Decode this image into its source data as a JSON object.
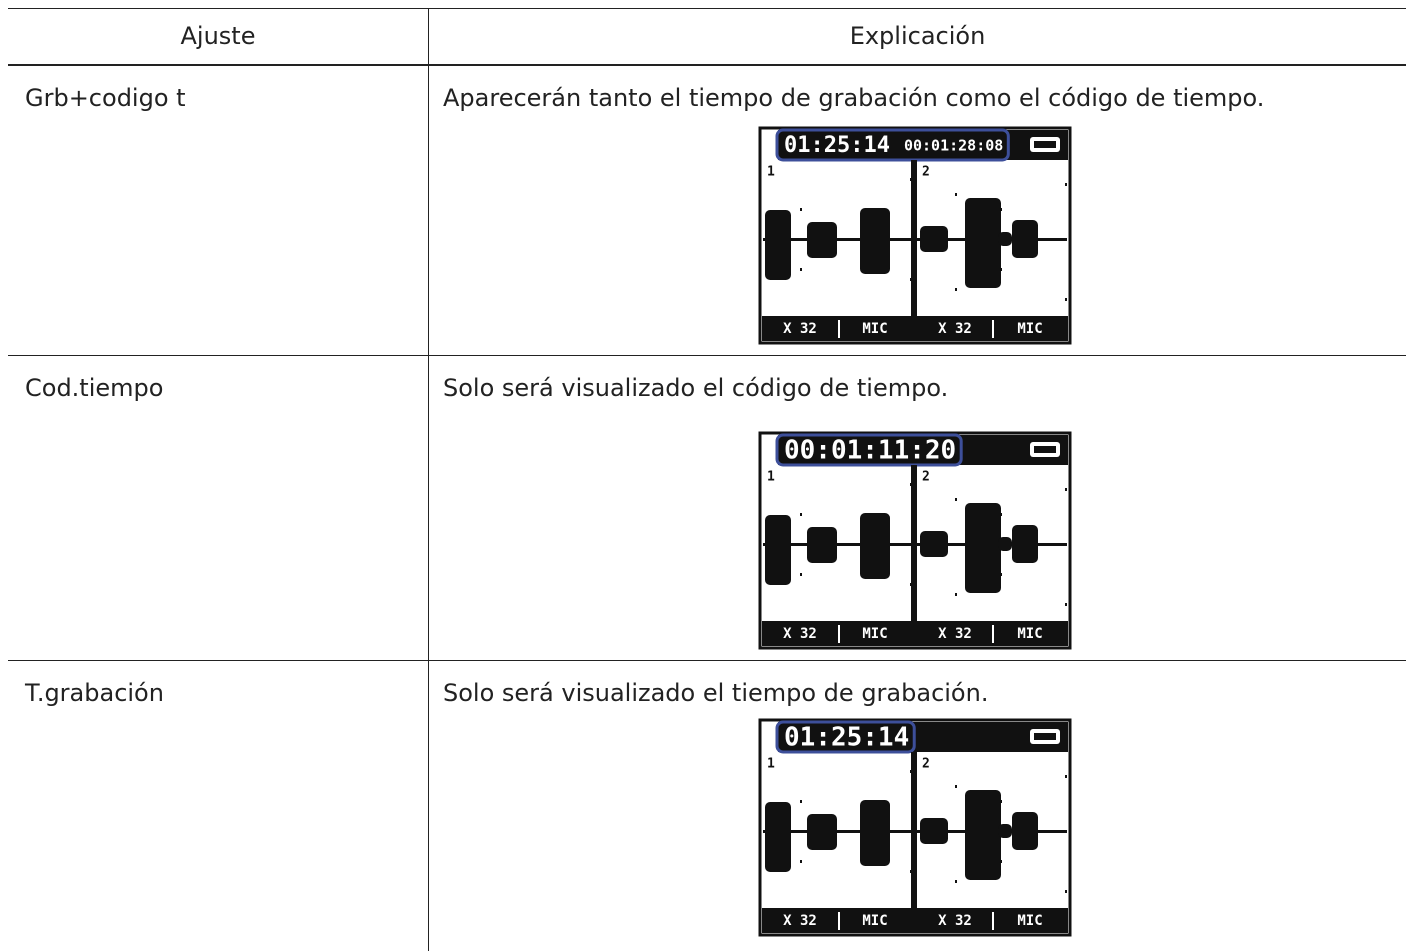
{
  "table": {
    "headers": [
      "Ajuste",
      "Explicación"
    ],
    "rows": [
      {
        "setting": "Grb+codigo t",
        "explanation": "Aparecerán tanto el tiempo de grabación como el código de tiempo.",
        "screen": {
          "top": [
            "01:25:14",
            "00:01:28:08"
          ],
          "channels": [
            "1",
            "2"
          ],
          "footer": [
            "X 32",
            "MIC",
            "X 32",
            "MIC"
          ]
        }
      },
      {
        "setting": "Cod.tiempo",
        "explanation": "Solo será visualizado el código de tiempo.",
        "screen": {
          "top": [
            "00:01:11:20"
          ],
          "channels": [
            "1",
            "2"
          ],
          "footer": [
            "X 32",
            "MIC",
            "X 32",
            "MIC"
          ]
        }
      },
      {
        "setting": "T.grabación",
        "explanation": "Solo será visualizado el tiempo de grabación.",
        "screen": {
          "top": [
            "01:25:14"
          ],
          "channels": [
            "1",
            "2"
          ],
          "footer": [
            "X 32",
            "MIC",
            "X 32",
            "MIC"
          ]
        }
      }
    ]
  }
}
